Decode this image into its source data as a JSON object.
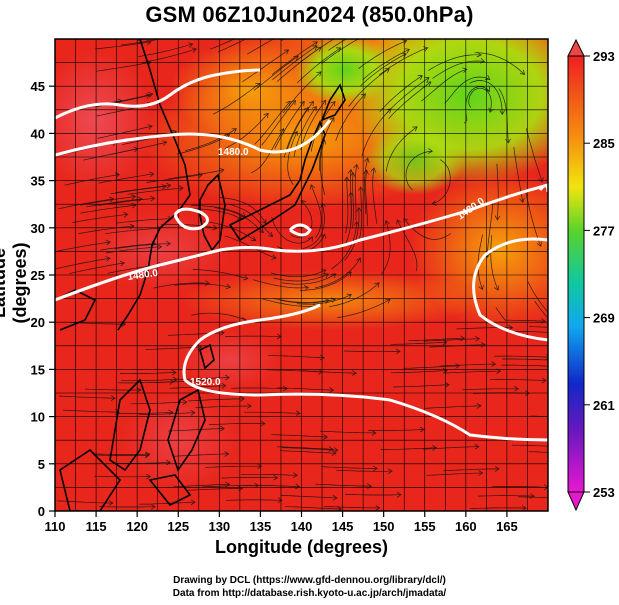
{
  "title": "GSM 06Z10Jun2024 (850.0hPa)",
  "axes": {
    "xlabel": "Longitude (degrees)",
    "ylabel": "Latitude  (degrees)",
    "x_ticks": [
      "110",
      "115",
      "120",
      "125",
      "130",
      "135",
      "140",
      "145",
      "150",
      "155",
      "160",
      "165"
    ],
    "y_ticks": [
      "0",
      "5",
      "10",
      "15",
      "20",
      "25",
      "30",
      "35",
      "40",
      "45"
    ],
    "xlim": [
      110,
      170
    ],
    "ylim": [
      0,
      50
    ]
  },
  "colorbar": {
    "ticks": [
      "293",
      "285",
      "277",
      "269",
      "261",
      "253"
    ],
    "range": [
      253,
      293
    ]
  },
  "contours": {
    "labels": [
      "1480.0",
      "1480.0",
      "1480.0",
      "1520.0"
    ]
  },
  "credits": {
    "line1": "Drawing by DCL (https://www.gfd-dennou.org/library/dcl/)",
    "line2": "Data from http://database.rish.kyoto-u.ac.jp/arch/jmadata/"
  },
  "colors": {
    "warm": "#e8231b",
    "mid": "#f58a0c",
    "cool": "#86d90f",
    "contour": "#ffffff"
  }
}
